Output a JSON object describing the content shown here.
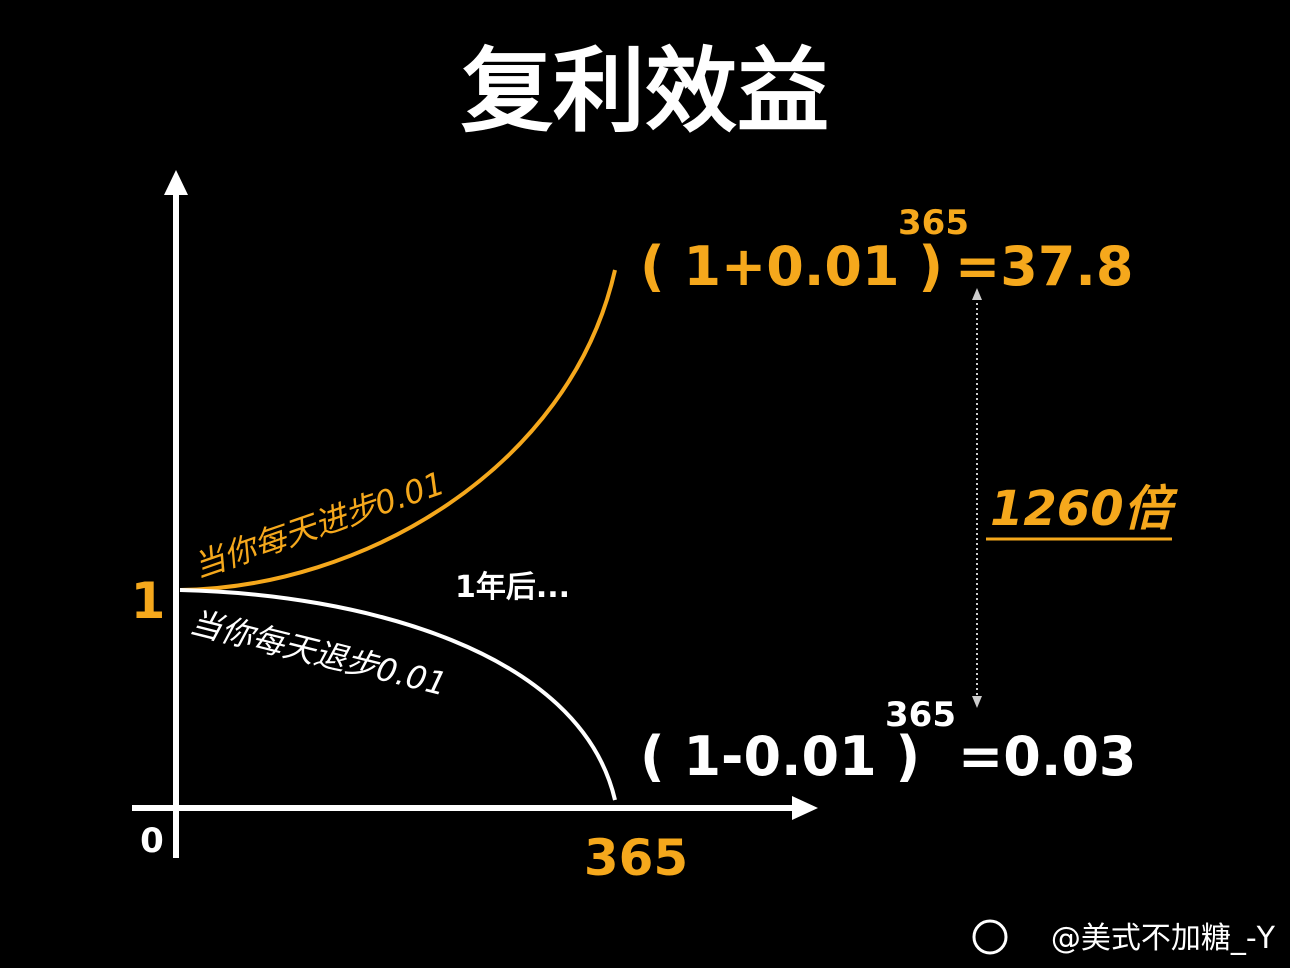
{
  "title": "复利效益",
  "axes": {
    "origin": "0",
    "y_start": "1",
    "x_end": "365"
  },
  "growth": {
    "label": "当你每天进步0.01",
    "base": "( 1+0.01 )",
    "exponent": "365",
    "result": "=37.8"
  },
  "decline": {
    "label": "当你每天退步0.01",
    "base": "( 1-0.01 )",
    "exponent": "365",
    "result": "=0.03"
  },
  "middle_note": "1年后...",
  "ratio": "1260倍",
  "watermark": "@美式不加糖_-Y"
}
